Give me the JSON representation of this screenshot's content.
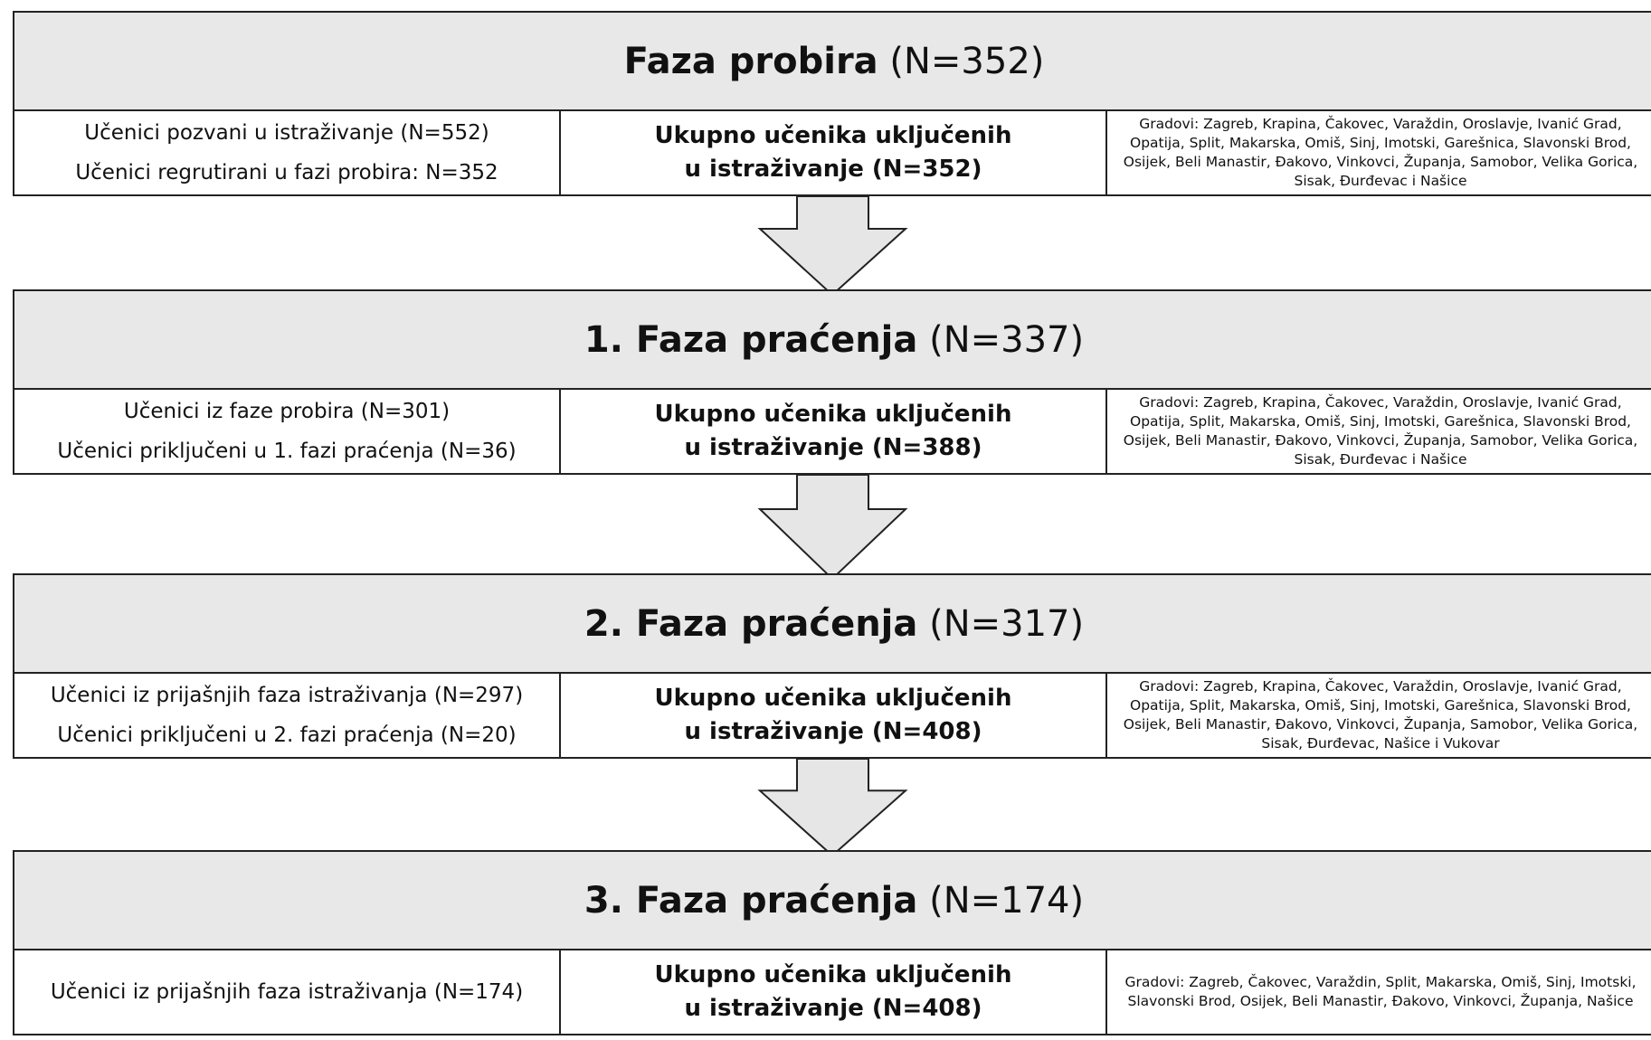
{
  "phases": [
    {
      "title": {
        "bold": "Faza probira",
        "rest": "(N=352)"
      },
      "left": [
        "Učenici pozvani u istraživanje (N=552)",
        "Učenici regrutirani u fazi probira: N=352"
      ],
      "total": "Ukupno učenika uključenih u istraživanje (N=352)",
      "cities": "Gradovi: Zagreb, Krapina, Čakovec, Varaždin, Oroslavje, Ivanić Grad, Opatija, Split, Makarska, Omiš, Sinj, Imotski, Garešnica, Slavonski Brod, Osijek, Beli Manastir, Đakovo, Vinkovci, Županja, Samobor, Velika Gorica, Sisak, Đurđevac i Našice"
    },
    {
      "title": {
        "bold": "1. Faza praćenja",
        "rest": "(N=337)"
      },
      "left": [
        "Učenici iz faze probira (N=301)",
        "Učenici priključeni u 1. fazi praćenja (N=36)"
      ],
      "total": "Ukupno učenika uključenih u istraživanje (N=388)",
      "cities": "Gradovi: Zagreb, Krapina, Čakovec, Varaždin, Oroslavje, Ivanić Grad, Opatija, Split, Makarska, Omiš, Sinj, Imotski, Garešnica, Slavonski Brod, Osijek, Beli Manastir, Đakovo, Vinkovci, Županja, Samobor, Velika Gorica, Sisak, Đurđevac i Našice"
    },
    {
      "title": {
        "bold": "2. Faza praćenja",
        "rest": "(N=317)"
      },
      "left": [
        "Učenici iz prijašnjih faza istraživanja (N=297)",
        "Učenici priključeni u 2. fazi praćenja (N=20)"
      ],
      "total": "Ukupno učenika uključenih u istraživanje (N=408)",
      "cities": "Gradovi: Zagreb, Krapina, Čakovec, Varaždin, Oroslavje, Ivanić Grad, Opatija, Split, Makarska, Omiš, Sinj, Imotski, Garešnica, Slavonski Brod, Osijek, Beli Manastir, Đakovo, Vinkovci, Županja, Samobor, Velika Gorica, Sisak, Đurđevac, Našice i Vukovar"
    },
    {
      "title": {
        "bold": "3. Faza praćenja",
        "rest": "(N=174)"
      },
      "left": [
        "Učenici iz prijašnjih faza istraživanja (N=174)"
      ],
      "total": "Ukupno učenika uključenih u istraživanje (N=408)",
      "cities": "Gradovi: Zagreb, Čakovec, Varaždin, Split, Makarska, Omiš, Sinj, Imotski, Slavonski Brod, Osijek, Beli Manastir, Đakovo, Vinkovci, Županja, Našice"
    }
  ]
}
